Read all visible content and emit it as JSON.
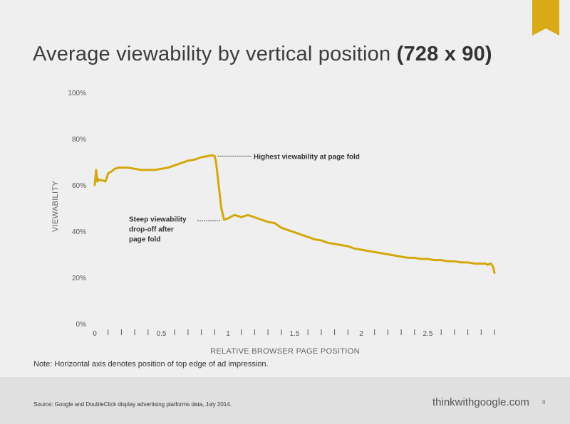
{
  "title": {
    "main": "Average viewability by vertical position",
    "bold": "(728 x 90)"
  },
  "note": "Note: Horizontal axis denotes position of top edge of ad impression.",
  "footer": {
    "source": "Source: Google and DoubleClick display advertising platforms data, July 2014.",
    "brand": "thinkwithgoogle.com",
    "page_number": "9"
  },
  "colors": {
    "line": "#d4a80c",
    "bookmark": "#d7aa16",
    "axis_text": "#555555",
    "background": "#efefef",
    "footer": "#e0e0e0"
  },
  "chart_data": {
    "type": "line",
    "xlabel": "RELATIVE BROWSER PAGE POSITION",
    "ylabel": "VIEWABILITY",
    "xlim": [
      0,
      3
    ],
    "ylim": [
      0,
      100
    ],
    "y_ticks": [
      0,
      20,
      40,
      60,
      80,
      100
    ],
    "y_tick_labels": [
      "0%",
      "20%",
      "40%",
      "60%",
      "80%",
      "100%"
    ],
    "x_tick_labels": [
      {
        "x": 0,
        "label": "0"
      },
      {
        "x": 0.5,
        "label": "0.5"
      },
      {
        "x": 1,
        "label": "1"
      },
      {
        "x": 1.5,
        "label": "1.5"
      },
      {
        "x": 2,
        "label": "2"
      },
      {
        "x": 2.5,
        "label": "2.5"
      }
    ],
    "minor_tick_step": 0.1,
    "grid": false,
    "series": [
      {
        "x": [
          0,
          0.01,
          0.02,
          0.03,
          0.04,
          0.06,
          0.08,
          0.09,
          0.1,
          0.13,
          0.15,
          0.18,
          0.2,
          0.25,
          0.3,
          0.35,
          0.4,
          0.45,
          0.5,
          0.55,
          0.6,
          0.65,
          0.7,
          0.75,
          0.8,
          0.85,
          0.87,
          0.88,
          0.9,
          0.91,
          0.93,
          0.95,
          0.97,
          1.0,
          1.03,
          1.05,
          1.08,
          1.1,
          1.12,
          1.15,
          1.2,
          1.25,
          1.3,
          1.35,
          1.4,
          1.45,
          1.5,
          1.55,
          1.6,
          1.65,
          1.7,
          1.75,
          1.8,
          1.85,
          1.9,
          1.95,
          2.0,
          2.05,
          2.1,
          2.15,
          2.2,
          2.25,
          2.3,
          2.35,
          2.4,
          2.45,
          2.5,
          2.55,
          2.6,
          2.65,
          2.7,
          2.75,
          2.8,
          2.85,
          2.9,
          2.93,
          2.95,
          2.97,
          2.98,
          2.99,
          3.0
        ],
        "y": [
          60,
          66.5,
          61.5,
          62.5,
          62,
          62,
          61.5,
          63,
          65,
          66,
          67,
          67.5,
          67.5,
          67.5,
          67,
          66.5,
          66.5,
          66.5,
          67,
          67.5,
          68.5,
          69.5,
          70.5,
          71,
          72,
          72.5,
          72.8,
          72.8,
          72.5,
          70,
          60,
          50,
          45,
          45.5,
          46.5,
          47,
          46.5,
          46,
          46.5,
          47,
          46,
          45,
          44,
          43.5,
          41.5,
          40.5,
          39.5,
          38.5,
          37.5,
          36.5,
          36,
          35,
          34.5,
          34,
          33.5,
          32.5,
          32,
          31.5,
          31,
          30.5,
          30,
          29.5,
          29,
          28.5,
          28.5,
          28,
          28,
          27.5,
          27.5,
          27,
          27,
          26.5,
          26.5,
          26,
          26,
          26,
          25.5,
          26,
          25.5,
          24.5,
          22
        ]
      }
    ],
    "annotations": [
      {
        "text": "Highest viewability at page fold",
        "x": 0.88,
        "y": 72.8
      },
      {
        "lines": [
          "Steep viewability",
          "drop-off after",
          "page fold"
        ],
        "x": 0.97,
        "y": 44.5
      }
    ]
  }
}
